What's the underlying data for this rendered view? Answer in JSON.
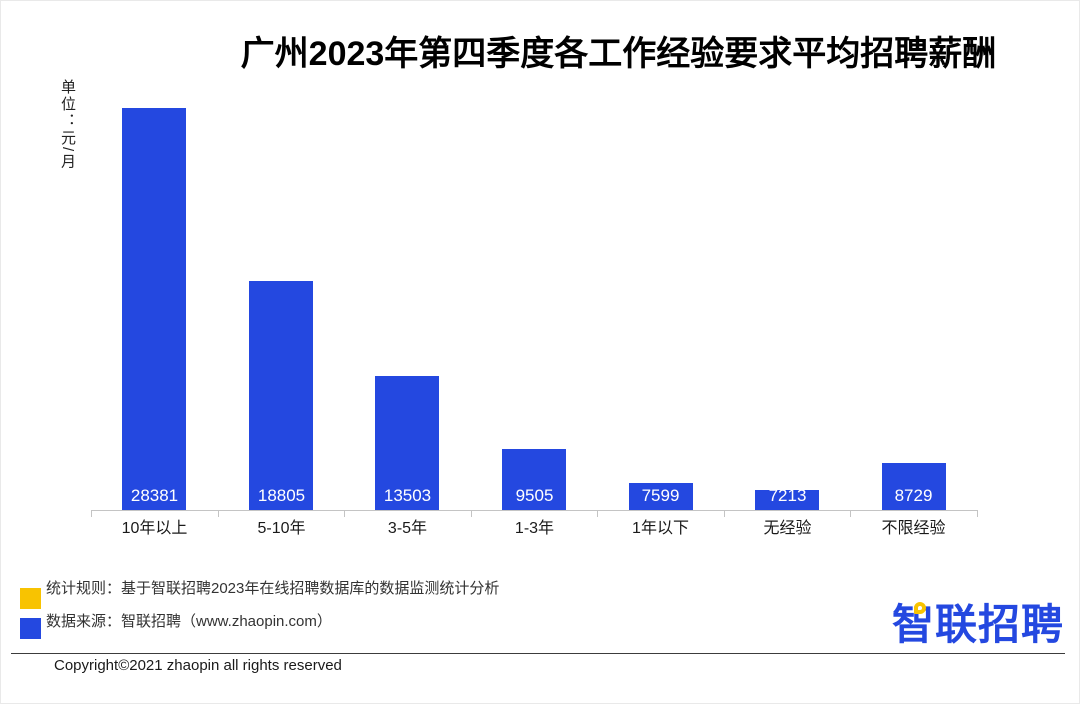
{
  "title": "广州2023年第四季度各工作经验要求平均招聘薪酬",
  "unit_label": "单位：元/月",
  "chart_data": {
    "type": "bar",
    "title": "广州2023年第四季度各工作经验要求平均招聘薪酬",
    "xlabel": "",
    "ylabel": "单位：元/月",
    "categories": [
      "10年以上",
      "5-10年",
      "3-5年",
      "1-3年",
      "1年以下",
      "无经验",
      "不限经验"
    ],
    "values": [
      28381,
      18805,
      13503,
      9505,
      7599,
      7213,
      8729
    ],
    "value_labels": [
      "28381",
      "18805",
      "13503",
      "9505",
      "7599",
      "7213",
      "8729"
    ],
    "ylim": [
      6100,
      28500
    ],
    "baseline_value": 6100,
    "grid": false,
    "legend_position": "none",
    "bar_color": "#2448e0",
    "value_label_color": "#ffffff",
    "axis_color": "#c4c4c4"
  },
  "footer": {
    "notes": [
      {
        "swatch_color": "#f8c301",
        "text": "统计规则：基于智联招聘2023年在线招聘数据库的数据监测统计分析"
      },
      {
        "swatch_color": "#2448e0",
        "text": "数据来源：智联招聘（www.zhaopin.com）"
      }
    ],
    "copyright": "Copyright©2021 zhaopin all rights reserved",
    "logo_text": "智联招聘",
    "logo_color": "#2448e0",
    "logo_bubble_color": "#f8c301"
  }
}
